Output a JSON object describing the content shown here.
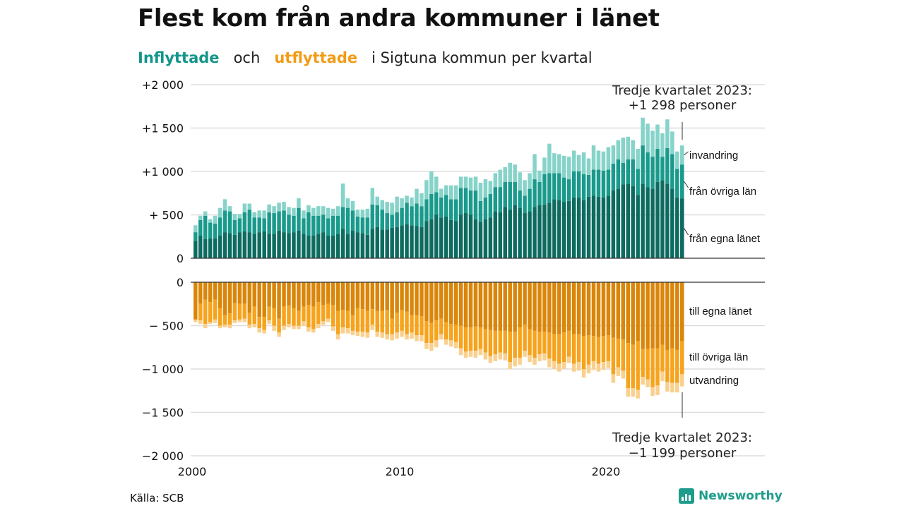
{
  "title": "Flest kom från andra kommuner i länet",
  "subtitle": {
    "inflow_word": "Inflyttade",
    "connector": "och",
    "outflow_word": "utflyttade",
    "rest": "i Sigtuna  kommun  per  kvartal"
  },
  "source": "Källa: SCB",
  "brand": "Newsworthy",
  "colors": {
    "in_own": "#0d6b60",
    "in_other": "#1a9a8c",
    "in_immig": "#86d3c9",
    "out_own": "#d9860a",
    "out_other": "#f6a31d",
    "out_emig": "#f9d08e",
    "grid": "#dddddd",
    "axis": "#333333"
  },
  "chart_data": {
    "type": "bar",
    "stacked": true,
    "x_ticks": [
      "2000",
      "2010",
      "2020"
    ],
    "upper_panel": {
      "y_ticks": [
        "+2 000",
        "+1 500",
        "+1 000",
        "+  500",
        "0"
      ],
      "ylim": [
        0,
        2000
      ],
      "series": [
        {
          "name": "från egna länet",
          "values": [
            200,
            260,
            220,
            230,
            230,
            260,
            300,
            290,
            270,
            300,
            310,
            300,
            280,
            300,
            310,
            280,
            280,
            320,
            300,
            290,
            300,
            320,
            280,
            260,
            260,
            280,
            300,
            260,
            260,
            280,
            340,
            280,
            320,
            300,
            290,
            270,
            340,
            360,
            330,
            330,
            350,
            360,
            380,
            390,
            380,
            370,
            360,
            430,
            450,
            500,
            470,
            480,
            440,
            430,
            500,
            520,
            500,
            450,
            420,
            450,
            470,
            540,
            530,
            590,
            560,
            610,
            580,
            520,
            540,
            590,
            610,
            620,
            640,
            680,
            670,
            650,
            660,
            700,
            700,
            670,
            710,
            720,
            710,
            700,
            720,
            780,
            800,
            850,
            860,
            830,
            730,
            860,
            820,
            800,
            880,
            900,
            860,
            800,
            700,
            690
          ]
        },
        {
          "name": "från övriga län",
          "values": [
            100,
            180,
            270,
            180,
            170,
            210,
            250,
            250,
            170,
            160,
            220,
            260,
            190,
            170,
            150,
            250,
            240,
            220,
            250,
            210,
            190,
            260,
            180,
            270,
            230,
            210,
            200,
            200,
            230,
            210,
            250,
            300,
            230,
            180,
            180,
            200,
            280,
            250,
            230,
            190,
            150,
            170,
            200,
            250,
            220,
            260,
            240,
            250,
            290,
            260,
            230,
            250,
            240,
            250,
            310,
            290,
            280,
            330,
            240,
            250,
            270,
            280,
            290,
            290,
            320,
            270,
            200,
            200,
            260,
            320,
            270,
            350,
            340,
            300,
            310,
            280,
            250,
            300,
            300,
            300,
            250,
            300,
            310,
            310,
            300,
            310,
            340,
            250,
            280,
            310,
            300,
            440,
            400,
            370,
            380,
            270,
            410,
            400,
            330,
            390
          ]
        },
        {
          "name": "invandring",
          "values": [
            80,
            50,
            50,
            40,
            90,
            110,
            130,
            60,
            70,
            50,
            100,
            70,
            60,
            80,
            90,
            90,
            80,
            100,
            100,
            90,
            90,
            110,
            90,
            80,
            90,
            110,
            100,
            120,
            80,
            110,
            270,
            110,
            110,
            80,
            90,
            100,
            190,
            100,
            110,
            130,
            140,
            180,
            110,
            80,
            100,
            170,
            150,
            220,
            260,
            180,
            100,
            110,
            160,
            160,
            130,
            130,
            150,
            160,
            210,
            210,
            150,
            160,
            200,
            170,
            220,
            200,
            210,
            180,
            180,
            290,
            130,
            190,
            340,
            230,
            220,
            250,
            260,
            240,
            190,
            250,
            190,
            280,
            220,
            220,
            260,
            210,
            220,
            290,
            260,
            220,
            230,
            320,
            330,
            300,
            280,
            270,
            330,
            260,
            200,
            220
          ]
        }
      ]
    },
    "lower_panel": {
      "y_ticks": [
        "0",
        "−  500",
        "−1 000",
        "−1 500",
        "−2 000"
      ],
      "ylim": [
        -2000,
        0
      ],
      "series": [
        {
          "name": "till egna länet",
          "values": [
            -430,
            -250,
            -200,
            -230,
            -200,
            -300,
            -380,
            -360,
            -240,
            -250,
            -250,
            -350,
            -280,
            -400,
            -400,
            -280,
            -300,
            -420,
            -280,
            -270,
            -300,
            -330,
            -280,
            -260,
            -280,
            -230,
            -260,
            -250,
            -260,
            -330,
            -320,
            -330,
            -380,
            -300,
            -310,
            -330,
            -310,
            -330,
            -330,
            -320,
            -420,
            -350,
            -320,
            -340,
            -380,
            -380,
            -390,
            -450,
            -470,
            -440,
            -420,
            -460,
            -480,
            -490,
            -500,
            -520,
            -520,
            -510,
            -520,
            -540,
            -550,
            -560,
            -560,
            -560,
            -570,
            -570,
            -520,
            -490,
            -540,
            -560,
            -570,
            -570,
            -580,
            -600,
            -600,
            -580,
            -560,
            -600,
            -600,
            -620,
            -610,
            -620,
            -630,
            -620,
            -610,
            -640,
            -650,
            -660,
            -700,
            -720,
            -680,
            -770,
            -770,
            -760,
            -760,
            -720,
            -780,
            -760,
            -780,
            -680
          ]
        },
        {
          "name": "till övriga län",
          "values": [
            0,
            -190,
            -280,
            -230,
            -230,
            -200,
            -110,
            -130,
            -200,
            -180,
            -170,
            -140,
            -200,
            -130,
            -150,
            -160,
            -200,
            -160,
            -220,
            -210,
            -200,
            -170,
            -170,
            -260,
            -260,
            -250,
            -190,
            -170,
            -250,
            -270,
            -200,
            -200,
            -180,
            -270,
            -260,
            -250,
            -180,
            -240,
            -250,
            -280,
            -180,
            -230,
            -240,
            -260,
            -200,
            -230,
            -220,
            -250,
            -230,
            -230,
            -180,
            -200,
            -190,
            -200,
            -260,
            -280,
            -270,
            -280,
            -250,
            -270,
            -300,
            -270,
            -250,
            -260,
            -350,
            -300,
            -350,
            -300,
            -300,
            -310,
            -260,
            -250,
            -300,
            -310,
            -340,
            -340,
            -300,
            -340,
            -320,
            -380,
            -340,
            -290,
            -310,
            -300,
            -300,
            -420,
            -330,
            -360,
            -520,
            -500,
            -560,
            -320,
            -350,
            -450,
            -430,
            -310,
            -370,
            -400,
            -380,
            -380
          ]
        },
        {
          "name": "utvandring",
          "values": [
            -30,
            -40,
            -50,
            -20,
            -40,
            -30,
            -30,
            -40,
            -30,
            -30,
            -40,
            -40,
            -40,
            -50,
            -40,
            -40,
            -60,
            -50,
            -50,
            -40,
            -40,
            -40,
            -50,
            -50,
            -40,
            -50,
            -40,
            -40,
            -50,
            -60,
            -70,
            -60,
            -50,
            -50,
            -60,
            -60,
            -60,
            -60,
            -60,
            -60,
            -70,
            -70,
            -70,
            -60,
            -70,
            -70,
            -70,
            -70,
            -90,
            -80,
            -60,
            -60,
            -70,
            -70,
            -80,
            -70,
            -70,
            -80,
            -70,
            -80,
            -80,
            -80,
            -80,
            -80,
            -80,
            -100,
            -80,
            -70,
            -80,
            -80,
            -80,
            -80,
            -100,
            -90,
            -90,
            -80,
            -70,
            -90,
            -100,
            -100,
            -100,
            -100,
            -90,
            -90,
            -80,
            -100,
            -100,
            -90,
            -100,
            -100,
            -100,
            -90,
            -90,
            -100,
            -110,
            -110,
            -110,
            -110,
            -110,
            -140
          ]
        }
      ]
    },
    "annotations": {
      "upper_line1": "Tredje kvartalet 2023:",
      "upper_line2": "+1 298 personer",
      "lower_line1": "Tredje kvartalet 2023:",
      "lower_line2": "−1 199 personer"
    }
  }
}
